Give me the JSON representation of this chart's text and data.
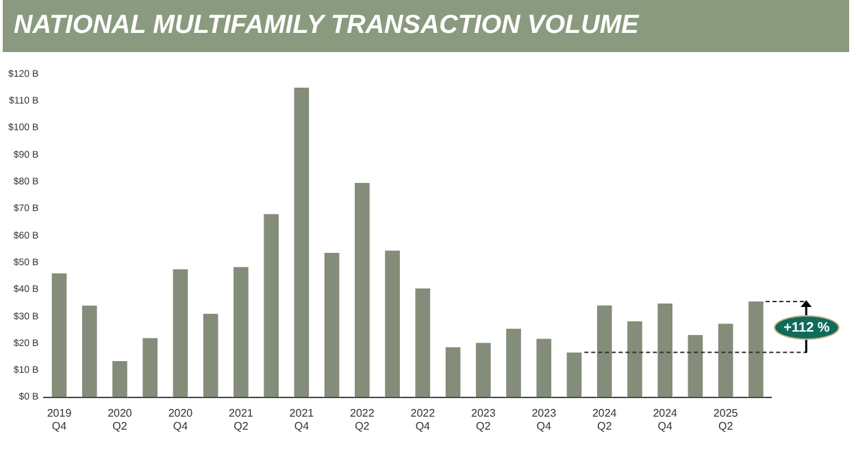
{
  "chart_data": {
    "type": "bar",
    "title": "NATIONAL MULTIFAMILY TRANSACTION VOLUME",
    "categories": [
      "2019 Q4",
      null,
      "2020 Q2",
      null,
      "2020 Q4",
      null,
      "2021 Q2",
      null,
      "2021 Q4",
      null,
      "2022 Q2",
      null,
      "2022 Q4",
      null,
      "2023 Q2",
      null,
      "2023 Q4",
      null,
      "2024 Q2",
      null,
      "2024 Q4",
      null,
      "2025 Q2",
      null
    ],
    "values": [
      46,
      34,
      13.4,
      22,
      47.5,
      31,
      48.4,
      68,
      115,
      53.6,
      79.6,
      54.5,
      40.4,
      18.6,
      20.2,
      25.5,
      21.7,
      16.6,
      34.1,
      28.2,
      34.8,
      23.1,
      27.3,
      35.6
    ],
    "color": "#848c7a",
    "ylim": [
      0,
      120
    ],
    "yticks": [
      {
        "value": 0,
        "label": "$0 B"
      },
      {
        "value": 10,
        "label": "$10 B"
      },
      {
        "value": 20,
        "label": "$20 B"
      },
      {
        "value": 30,
        "label": "$30 B"
      },
      {
        "value": 40,
        "label": "$40 B"
      },
      {
        "value": 50,
        "label": "$50 B"
      },
      {
        "value": 60,
        "label": "$60 B"
      },
      {
        "value": 70,
        "label": "$70 B"
      },
      {
        "value": 80,
        "label": "$80 B"
      },
      {
        "value": 90,
        "label": "$90 B"
      },
      {
        "value": 100,
        "label": "$100 B"
      },
      {
        "value": 110,
        "label": "$110 B"
      },
      {
        "value": 120,
        "label": "$120 B"
      }
    ],
    "grid": false,
    "legend": false,
    "ref_lines": [
      {
        "axis": "y",
        "value": 16.6,
        "line_style": "dotted"
      }
    ],
    "annotations": [
      "+112 %"
    ]
  }
}
